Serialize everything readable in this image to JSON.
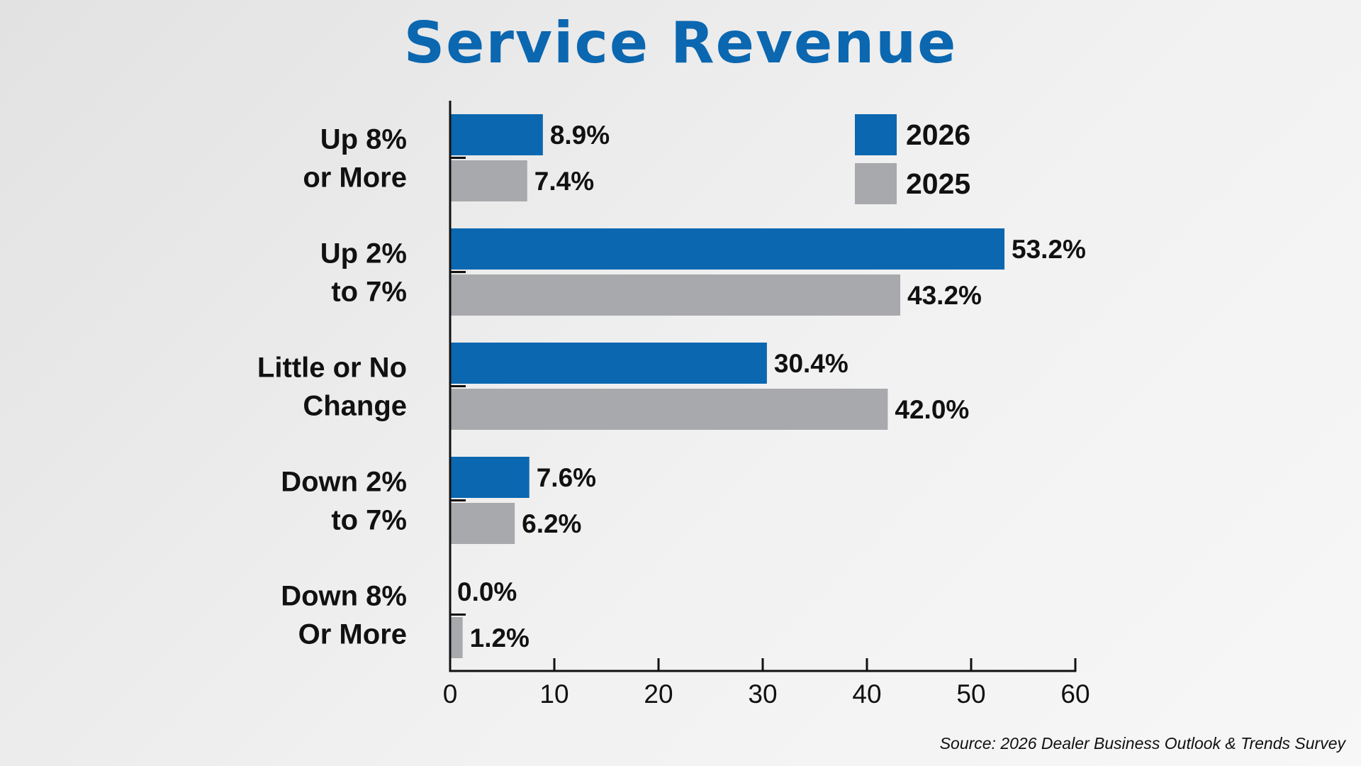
{
  "chart_data": {
    "type": "bar",
    "orientation": "horizontal",
    "title": "Service Revenue",
    "categories": [
      [
        "Up 8%",
        "or More"
      ],
      [
        "Up 2%",
        "to 7%"
      ],
      [
        "Little or No",
        "Change"
      ],
      [
        "Down 2%",
        "to 7%"
      ],
      [
        "Down 8%",
        "Or More"
      ]
    ],
    "series": [
      {
        "name": "2026",
        "color": "#0b67b0",
        "values": [
          8.9,
          53.2,
          30.4,
          7.6,
          0.0
        ],
        "labels": [
          "8.9%",
          "53.2%",
          "30.4%",
          "7.6%",
          "0.0%"
        ]
      },
      {
        "name": "2025",
        "color": "#a8a9ac",
        "values": [
          7.4,
          43.2,
          42.0,
          6.2,
          1.2
        ],
        "labels": [
          "7.4%",
          "43.2%",
          "42.0%",
          "6.2%",
          "1.2%"
        ]
      }
    ],
    "xlim": [
      0,
      60
    ],
    "xticks": [
      0,
      10,
      20,
      30,
      40,
      50,
      60
    ],
    "xlabel": "",
    "ylabel": "",
    "grid": false,
    "legend_position": "top-right",
    "source": "Source: 2026 Dealer Business Outlook & Trends Survey"
  }
}
